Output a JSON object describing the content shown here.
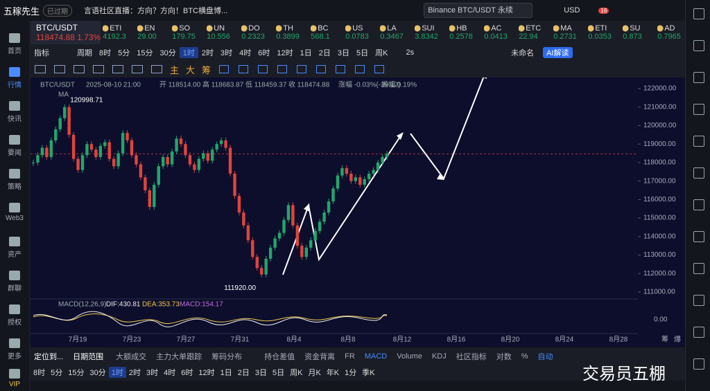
{
  "top_bar": {
    "app_name": "五稼先生",
    "status": "已过期",
    "news": "言语社区直播：方向？方向！BTC横盘博...",
    "search": "Binance BTC/USDT 永续",
    "currency": "USD",
    "badge": "16"
  },
  "sidebar": [
    "首页",
    "行情",
    "快讯",
    "要闻",
    "策略",
    "Web3",
    "资产",
    "群聊",
    "授权",
    "更多",
    "VIP"
  ],
  "main_ticker": {
    "symbol": "BTC/USDT",
    "price": "118474.88",
    "change": "1.73%"
  },
  "tickers": [
    {
      "name": "ETI",
      "price": "4192.3"
    },
    {
      "name": "EN",
      "price": "29.00"
    },
    {
      "name": "SO",
      "price": "179.75"
    },
    {
      "name": "UN",
      "price": "10.556"
    },
    {
      "name": "DO",
      "price": "0.2323"
    },
    {
      "name": "TH",
      "price": "0.3899"
    },
    {
      "name": "BC",
      "price": "568.1"
    },
    {
      "name": "US",
      "price": "0.0783"
    },
    {
      "name": "LA",
      "price": "0.3467"
    },
    {
      "name": "SUI",
      "price": "3.8342"
    },
    {
      "name": "HB",
      "price": "0.2578"
    },
    {
      "name": "AC",
      "price": "0.0413"
    },
    {
      "name": "ETC",
      "price": "22.94"
    },
    {
      "name": "MA",
      "price": "0.2731"
    },
    {
      "name": "ETI",
      "price": "0.0353"
    },
    {
      "name": "SU",
      "price": "0.873"
    },
    {
      "name": "AD",
      "price": "0.7965"
    }
  ],
  "toolbar": {
    "indicator": "指标",
    "period": "周期",
    "intervals": [
      "8时",
      "5分",
      "15分",
      "30分",
      "1时",
      "2时",
      "3时",
      "4时",
      "6时",
      "12时",
      "1日",
      "2日",
      "3日",
      "5日",
      "周K"
    ],
    "active": "1时",
    "refresh": "2s",
    "layout": "未命名",
    "ai": "AI解读"
  },
  "draw_tools": [
    "主",
    "大",
    "筹"
  ],
  "chart_info": {
    "symbol": "BTC/USDT",
    "datetime": "2025-08-10 21:00",
    "fields": [
      "开 118514.00",
      "高 118683.87",
      "低 118459.37",
      "收 118474.88",
      "涨幅 -0.03%(-39.12)",
      "振幅 0.19%"
    ],
    "indicator": "MA"
  },
  "chart_data": {
    "type": "candlestick",
    "ylim": [
      111000,
      122000
    ],
    "yticks": [
      {
        "value": 122000,
        "label": "122000.00"
      },
      {
        "value": 121000,
        "label": "121000.00"
      },
      {
        "value": 120000,
        "label": "120000.00"
      },
      {
        "value": 119000,
        "label": "119000.00"
      },
      {
        "value": 118000,
        "label": "118000.00"
      },
      {
        "value": 117000,
        "label": "117000.00"
      },
      {
        "value": 116000,
        "label": "116000.00"
      },
      {
        "value": 115000,
        "label": "115000.00"
      },
      {
        "value": 114000,
        "label": "114000.00"
      },
      {
        "value": 113000,
        "label": "113000.00"
      },
      {
        "value": 112000,
        "label": "112000.00"
      },
      {
        "value": 111000,
        "label": "111000.00"
      }
    ],
    "current_price": {
      "value": 118474.88,
      "color": "#e0443e"
    },
    "closes": [
      118000,
      118400,
      118800,
      118300,
      119200,
      119800,
      120400,
      120998,
      119500,
      118200,
      117600,
      118400,
      119000,
      118700,
      118300,
      118900,
      119100,
      118200,
      117800,
      118500,
      119600,
      119200,
      118400,
      117900,
      117200,
      116500,
      115600,
      116800,
      117800,
      118300,
      117900,
      118600,
      119300,
      119000,
      118400,
      117900,
      117600,
      118200,
      118500,
      118100,
      118700,
      119000,
      119200,
      118800,
      117400,
      116200,
      115300,
      114600,
      113800,
      112900,
      112300,
      111950,
      112800,
      113400,
      113900,
      114200,
      114900,
      115700,
      114600,
      113500,
      112900,
      113400,
      113800,
      114300,
      114800,
      115300,
      115900,
      116600,
      117300,
      117700,
      117400,
      117000,
      117200,
      116800,
      117100,
      117400,
      117600,
      118000,
      118300,
      118474.88
    ],
    "up_color": "#22a66b",
    "down_color": "#e0443e",
    "x": [
      "7月19",
      "7月23",
      "7月27",
      "7月31",
      "8月4",
      "8月8",
      "8月12",
      "8月16",
      "8月20",
      "8月24",
      "8月28"
    ],
    "high_label": "120998.71",
    "low_label": "111920.00"
  },
  "macd": {
    "title": "MACD(12,26,9)",
    "dif": "DIF:430.81",
    "dea": "DEA:353.73",
    "macd": "MACD:154.17",
    "zero": "0.00"
  },
  "axis_extra": [
    "筹",
    "爆"
  ],
  "tabs": [
    "定位到...",
    "日期范围",
    "大额成交",
    "主力大单跟踪",
    "筹码分布",
    "持仓差值",
    "资金背离",
    "FR",
    "MACD",
    "Volume",
    "KDJ",
    "社区指标",
    "对数",
    "%",
    "自动"
  ],
  "timeframes": [
    "8时",
    "5分",
    "15分",
    "30分",
    "1时",
    "2时",
    "3时",
    "4时",
    "6时",
    "12时",
    "1日",
    "2日",
    "3日",
    "5日",
    "周K",
    "月K",
    "年K",
    "1分",
    "季K"
  ],
  "watermark": "交易员五棚"
}
